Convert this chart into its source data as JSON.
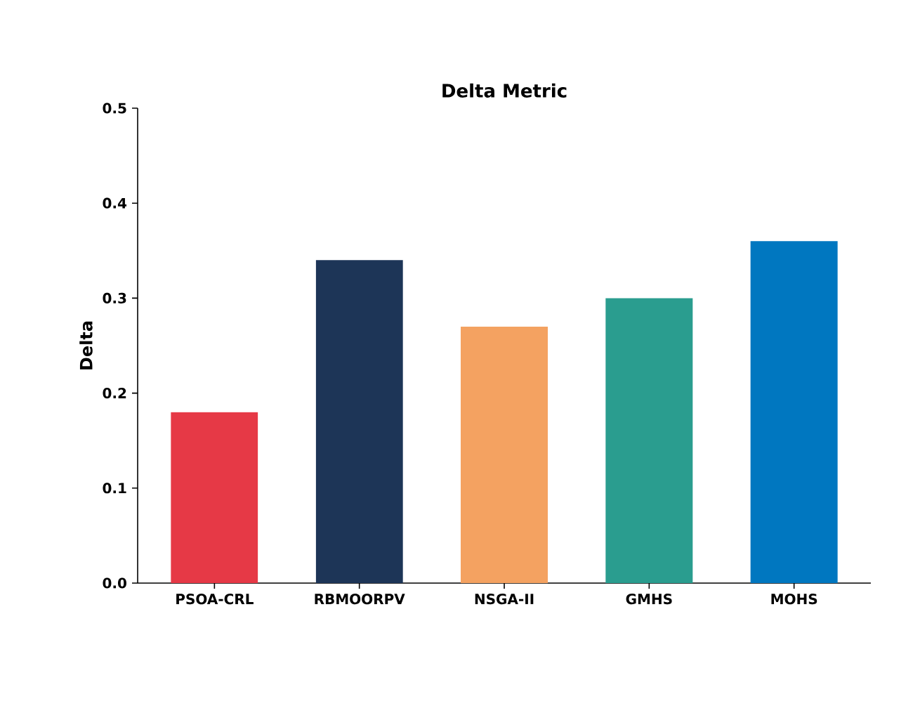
{
  "chart_data": {
    "type": "bar",
    "title": "Delta Metric",
    "ylabel": "Delta",
    "categories": [
      "PSOA-CRL",
      "RBMOORPV",
      "NSGA-II",
      "GMHS",
      "MOHS"
    ],
    "values": [
      0.18,
      0.34,
      0.27,
      0.3,
      0.36
    ],
    "colors": [
      "#e63946",
      "#1d3557",
      "#f4a261",
      "#2a9d8f",
      "#0077c0"
    ],
    "ylim": [
      0,
      0.5
    ],
    "yticks": [
      {
        "value": 0,
        "label": "0.0"
      },
      0.1,
      0.2,
      0.3,
      0.4,
      0.5
    ],
    "grid": false
  }
}
